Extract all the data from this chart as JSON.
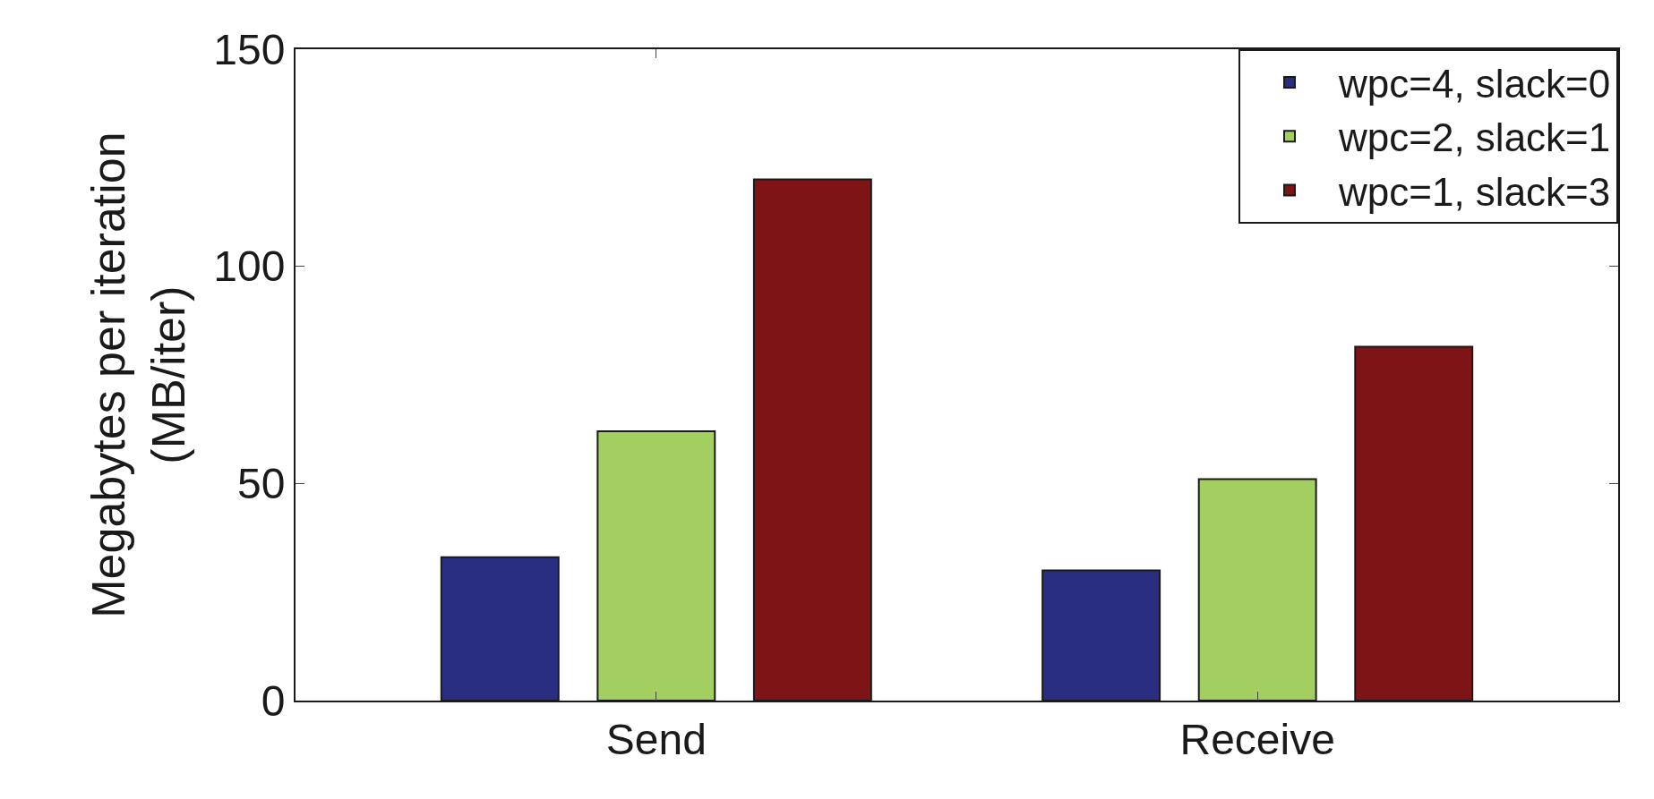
{
  "chart_data": {
    "type": "bar",
    "ylabel": "Megabytes per iteration\n(MB/iter)",
    "categories": [
      "Send",
      "Receive"
    ],
    "series": [
      {
        "name": "wpc=4, slack=0",
        "color": "#2a2e80",
        "values": [
          33,
          30
        ]
      },
      {
        "name": "wpc=2, slack=1",
        "color": "#a2cf60",
        "values": [
          62,
          51
        ]
      },
      {
        "name": "wpc=1, slack=3",
        "color": "#7f1416",
        "values": [
          120,
          81.5
        ]
      }
    ],
    "ylim": [
      0,
      150
    ],
    "yticks": [
      0,
      50,
      100,
      150
    ],
    "legend": "top right"
  }
}
